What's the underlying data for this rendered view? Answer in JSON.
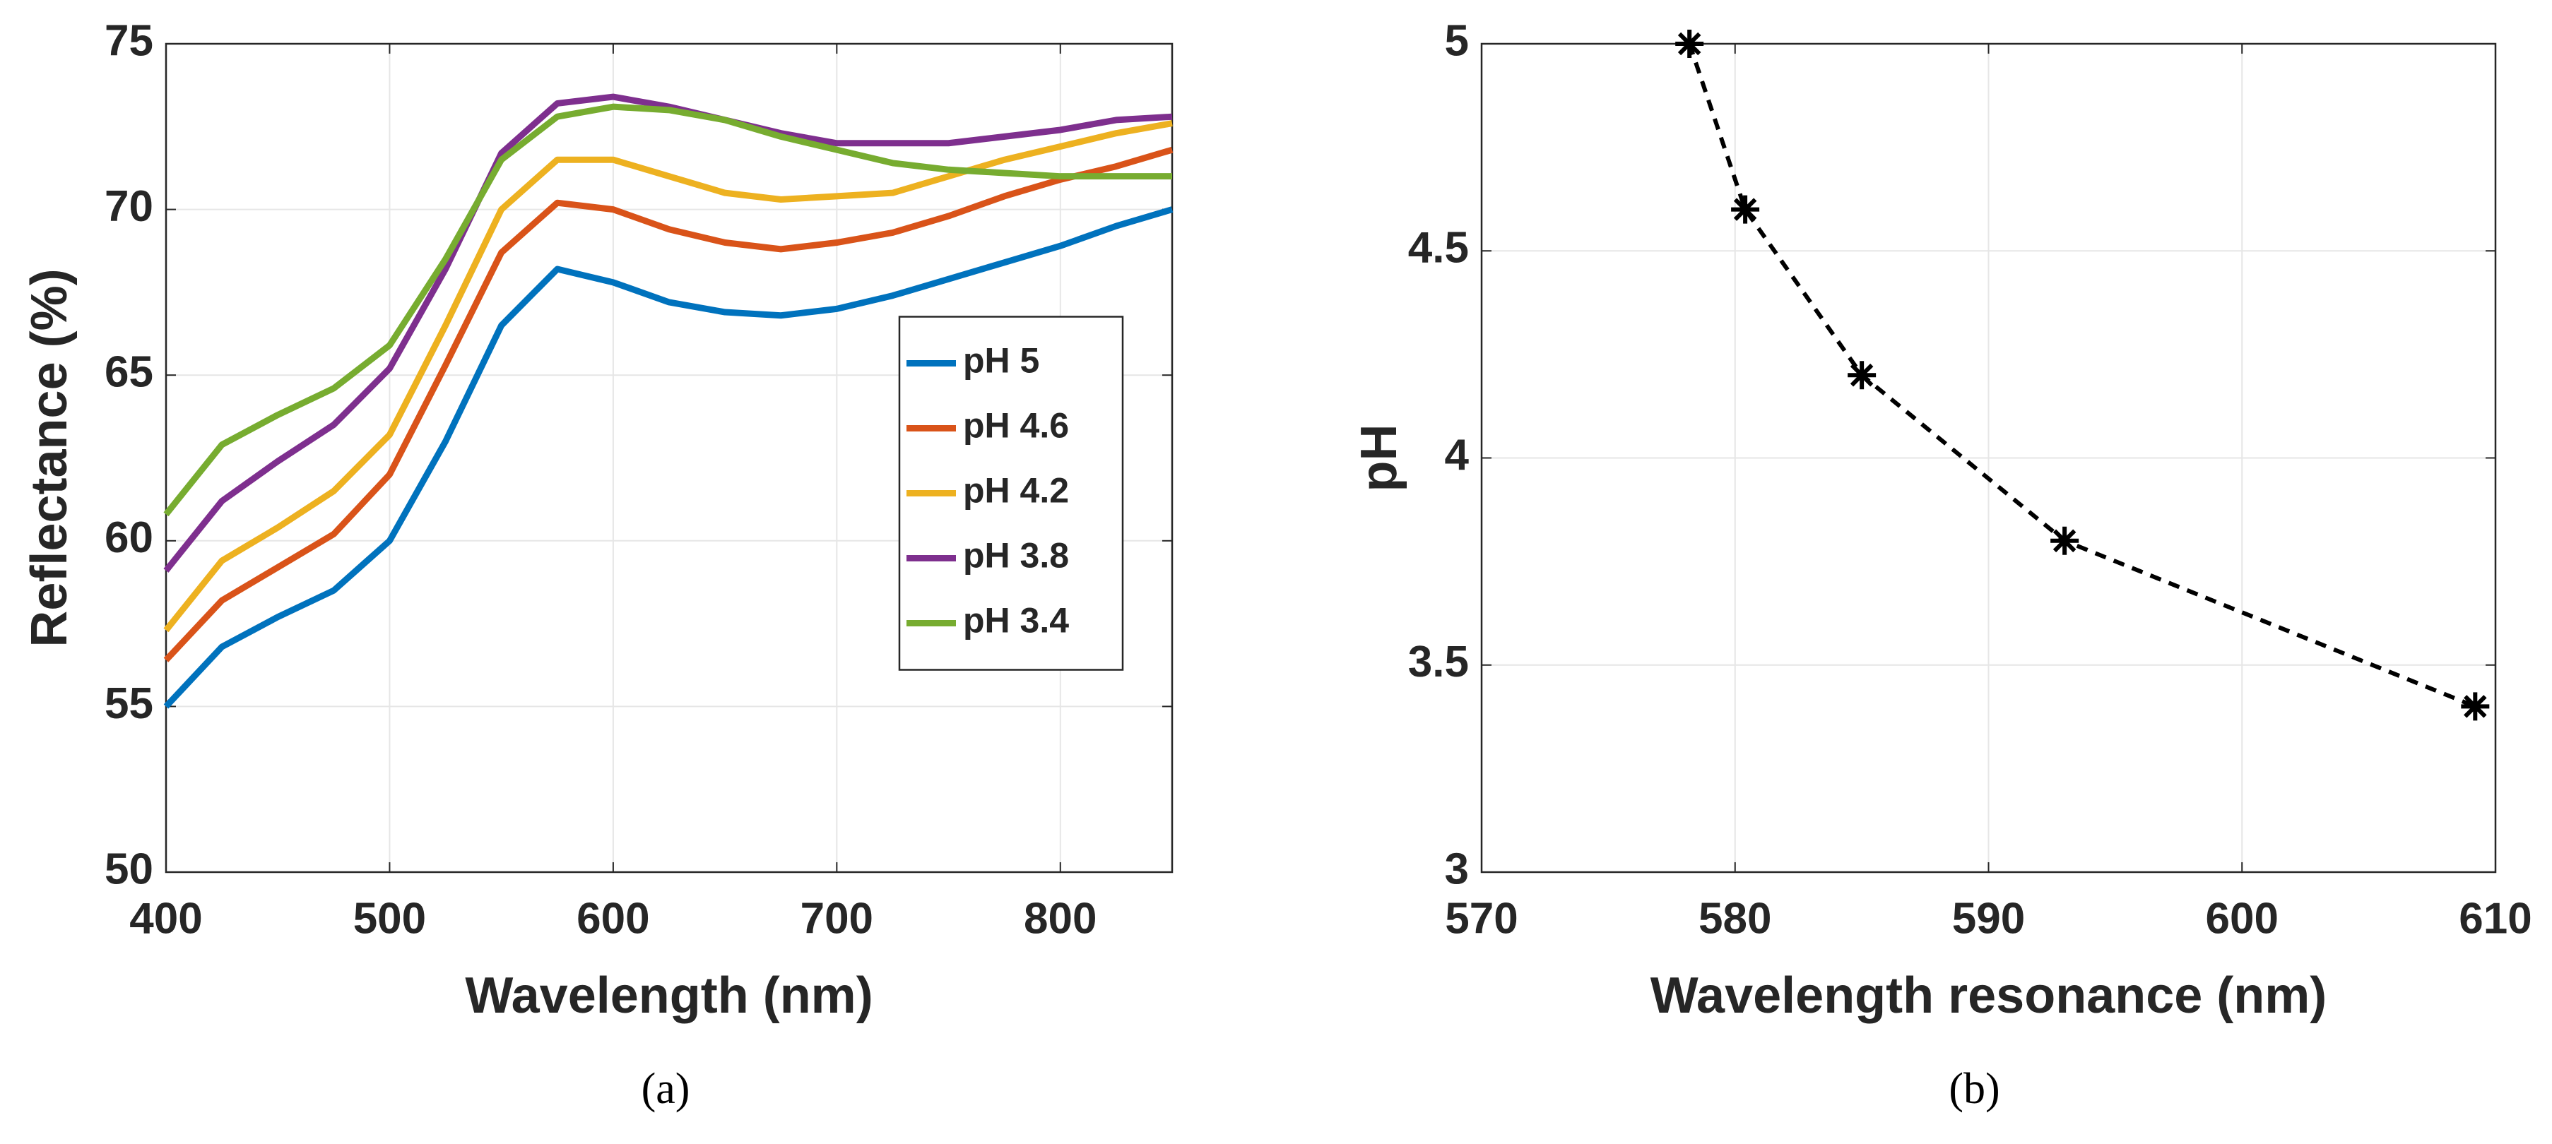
{
  "chart_data": [
    {
      "type": "line",
      "caption": "(a)",
      "xlabel": "Wavelength (nm)",
      "ylabel": "Reflectance (%)",
      "x": [
        400,
        425,
        450,
        475,
        500,
        525,
        550,
        575,
        600,
        625,
        650,
        675,
        700,
        725,
        750,
        775,
        800,
        825,
        850
      ],
      "series": [
        {
          "name": "pH 5",
          "color": "#0072bd",
          "values": [
            55,
            56.8,
            57.7,
            58.5,
            60,
            63,
            66.5,
            68.2,
            67.8,
            67.2,
            66.9,
            66.8,
            67.0,
            67.4,
            67.9,
            68.4,
            68.9,
            69.5,
            70
          ]
        },
        {
          "name": "pH 4.6",
          "color": "#d95319",
          "values": [
            56.4,
            58.2,
            59.2,
            60.2,
            62,
            65.3,
            68.7,
            70.2,
            70.0,
            69.4,
            69.0,
            68.8,
            69.0,
            69.3,
            69.8,
            70.4,
            70.9,
            71.3,
            71.8
          ]
        },
        {
          "name": "pH 4.2",
          "color": "#edb120",
          "values": [
            57.3,
            59.4,
            60.4,
            61.5,
            63.2,
            66.5,
            70.0,
            71.5,
            71.5,
            71.0,
            70.5,
            70.3,
            70.4,
            70.5,
            71.0,
            71.5,
            71.9,
            72.3,
            72.6
          ]
        },
        {
          "name": "pH 3.8",
          "color": "#7e2f8e",
          "values": [
            59.1,
            61.2,
            62.4,
            63.5,
            65.2,
            68.2,
            71.7,
            73.2,
            73.4,
            73.1,
            72.7,
            72.3,
            72.0,
            72.0,
            72.0,
            72.2,
            72.4,
            72.7,
            72.8
          ]
        },
        {
          "name": "pH 3.4",
          "color": "#77ac30",
          "values": [
            60.8,
            62.9,
            63.8,
            64.6,
            65.9,
            68.5,
            71.5,
            72.8,
            73.1,
            73.0,
            72.7,
            72.2,
            71.8,
            71.4,
            71.2,
            71.1,
            71.0,
            71.0,
            71.0
          ]
        }
      ],
      "xlim": [
        400,
        850
      ],
      "xticks": [
        400,
        500,
        600,
        700,
        800
      ],
      "ylim": [
        50,
        75
      ],
      "yticks": [
        50,
        55,
        60,
        65,
        70,
        75
      ],
      "grid": true,
      "legend": "east"
    },
    {
      "type": "line",
      "caption": "(b)",
      "xlabel": "Wavelength resonance (nm)",
      "ylabel": "pH",
      "x": [
        578.2,
        580.4,
        585,
        593,
        609.2
      ],
      "values": [
        5,
        4.6,
        4.2,
        3.8,
        3.4
      ],
      "color": "#000000",
      "linestyle": "dashed",
      "marker": "asterisk",
      "xlim": [
        570,
        610
      ],
      "xticks": [
        570,
        580,
        590,
        600,
        610
      ],
      "ylim": [
        3,
        5
      ],
      "yticks": [
        3,
        3.5,
        4,
        4.5,
        5
      ],
      "grid": true
    }
  ]
}
